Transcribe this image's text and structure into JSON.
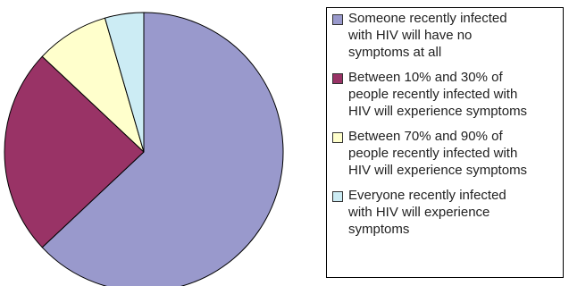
{
  "chart_data": {
    "type": "pie",
    "series": [
      {
        "name": "",
        "labels": [
          "Someone recently infected with HIV will have no symptoms at all",
          "Between 10% and 30% of people recently infected with HIV will experience symptoms",
          "Between 70% and 90% of people recently infected with HIV will experience symptoms",
          "Everyone recently infected with HIV will experience symptoms"
        ],
        "values": [
          63,
          24,
          8.5,
          4.5
        ]
      }
    ],
    "colors": [
      "#9999CC",
      "#993366",
      "#FFFFCC",
      "#CCECF4"
    ],
    "start_angle_deg": 0,
    "direction": "clockwise",
    "legend": {
      "position": "right",
      "items": [
        {
          "label": "Someone recently infected\nwith HIV will have no\nsymptoms at all",
          "color": "#9999CC"
        },
        {
          "label": "Between 10% and 30% of\npeople recently infected with\nHIV will experience symptoms",
          "color": "#993366"
        },
        {
          "label": "Between 70% and 90% of\npeople recently infected with\nHIV will experience symptoms",
          "color": "#FFFFCC"
        },
        {
          "label": "Everyone recently infected\nwith HIV will experience\nsymptoms",
          "color": "#CCECF4"
        }
      ]
    }
  }
}
